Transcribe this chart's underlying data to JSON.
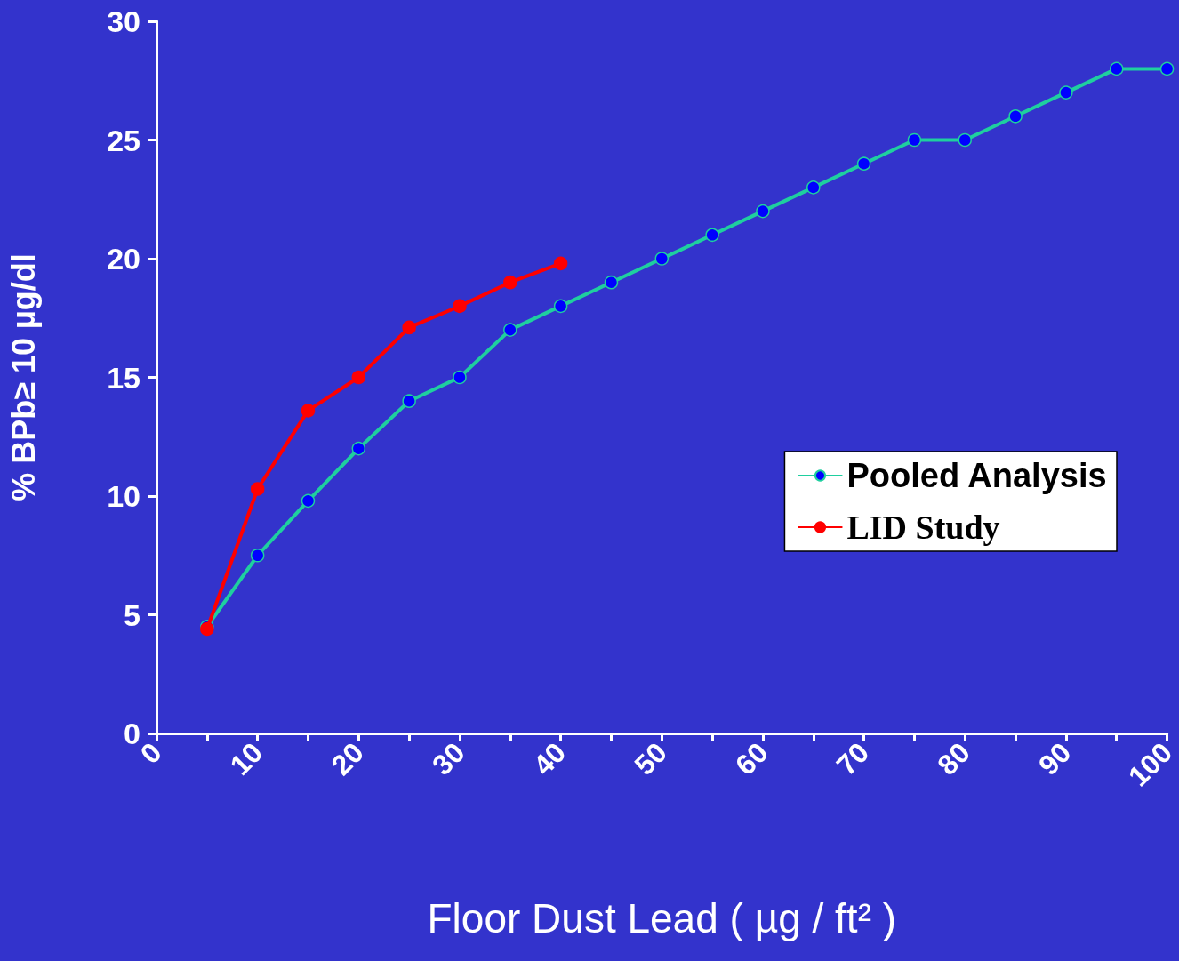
{
  "chart_data": {
    "type": "line",
    "xlabel": "Floor Dust Lead ( µg / ft² )",
    "ylabel": "% BPb≥ 10 µg/dl",
    "x": [
      5,
      10,
      15,
      20,
      25,
      30,
      35,
      40,
      45,
      50,
      55,
      60,
      65,
      70,
      75,
      80,
      85,
      90,
      95,
      100
    ],
    "series": [
      {
        "name": "Pooled Analysis",
        "color": "#1fcf9f",
        "values": [
          4.5,
          7.5,
          9.8,
          12,
          14,
          15,
          17,
          18,
          19,
          20,
          21,
          22,
          23,
          24,
          25,
          25,
          26,
          27,
          28,
          28
        ]
      },
      {
        "name": "LID Study",
        "color": "#ff0000",
        "values": [
          4.4,
          10.3,
          13.6,
          15,
          17.1,
          18,
          19,
          19.8,
          null,
          null,
          null,
          null,
          null,
          null,
          null,
          null,
          null,
          null,
          null,
          null
        ]
      }
    ],
    "xlim": [
      0,
      100
    ],
    "xticks": [
      0,
      {
        "value": 5,
        "label": null
      },
      10,
      {
        "value": 15,
        "label": null
      },
      20,
      {
        "value": 25,
        "label": null
      },
      30,
      {
        "value": 35,
        "label": null
      },
      40,
      {
        "value": 45,
        "label": null
      },
      50,
      {
        "value": 55,
        "label": null
      },
      60,
      {
        "value": 65,
        "label": null
      },
      70,
      {
        "value": 75,
        "label": null
      },
      80,
      {
        "value": 85,
        "label": null
      },
      90,
      {
        "value": 95,
        "label": null
      },
      100
    ],
    "ylim": [
      0,
      30
    ],
    "yticks": [
      0,
      5,
      10,
      15,
      20,
      25,
      30
    ],
    "grid": false,
    "legend": "right",
    "marker": "circle",
    "line_style": "solid"
  }
}
